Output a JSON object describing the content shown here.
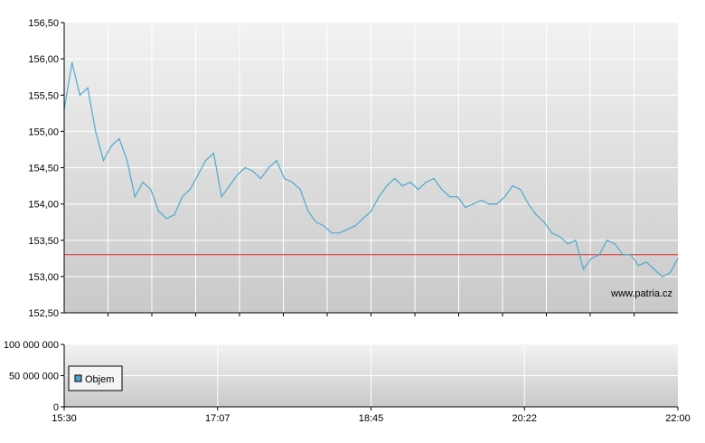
{
  "watermark": "www.patria.cz",
  "colors": {
    "price_line": "#4fa9d0",
    "reference_line": "#e03030",
    "plot_bg_top": "#f2f2f2",
    "plot_bg_bottom": "#c9c9c9",
    "legend_swatch": "#4f9fd0"
  },
  "chart_data": [
    {
      "type": "line",
      "grid": true,
      "x_ticks": [
        "15:30",
        "17:07",
        "18:45",
        "20:22",
        "22:00"
      ],
      "ylim": [
        152.5,
        156.5
      ],
      "y_ticks": [
        152.5,
        153.0,
        153.5,
        154.0,
        154.5,
        155.0,
        155.5,
        156.0,
        156.5
      ],
      "y_tick_labels": [
        "152,50",
        "153,00",
        "153,50",
        "154,00",
        "154,50",
        "155,00",
        "155,50",
        "156,00",
        "156,50"
      ],
      "reference_line": 153.3,
      "series": [
        {
          "x": [
            "15:30",
            "15:35",
            "15:40",
            "15:45",
            "15:50",
            "15:55",
            "16:00",
            "16:05",
            "16:10",
            "16:15",
            "16:20",
            "16:25",
            "16:30",
            "16:35",
            "16:40",
            "16:45",
            "16:50",
            "16:55",
            "17:00",
            "17:05",
            "17:10",
            "17:15",
            "17:20",
            "17:25",
            "17:30",
            "17:35",
            "17:40",
            "17:45",
            "17:50",
            "17:55",
            "18:00",
            "18:05",
            "18:10",
            "18:15",
            "18:20",
            "18:25",
            "18:30",
            "18:35",
            "18:40",
            "18:45",
            "18:50",
            "18:55",
            "19:00",
            "19:05",
            "19:10",
            "19:15",
            "19:20",
            "19:25",
            "19:30",
            "19:35",
            "19:40",
            "19:45",
            "19:50",
            "19:55",
            "20:00",
            "20:05",
            "20:10",
            "20:15",
            "20:20",
            "20:25",
            "20:30",
            "20:35",
            "20:40",
            "20:45",
            "20:50",
            "20:55",
            "21:00",
            "21:05",
            "21:10",
            "21:15",
            "21:20",
            "21:25",
            "21:30",
            "21:35",
            "21:40",
            "21:45",
            "21:50",
            "21:55",
            "22:00"
          ],
          "values": [
            155.3,
            155.95,
            155.5,
            155.6,
            155.0,
            154.6,
            154.8,
            154.9,
            154.6,
            154.1,
            154.3,
            154.2,
            153.9,
            153.8,
            153.85,
            154.1,
            154.2,
            154.4,
            154.6,
            154.7,
            154.1,
            154.25,
            154.4,
            154.5,
            154.45,
            154.35,
            154.5,
            154.6,
            154.35,
            154.3,
            154.2,
            153.9,
            153.75,
            153.7,
            153.6,
            153.6,
            153.65,
            153.7,
            153.8,
            153.9,
            154.1,
            154.25,
            154.35,
            154.25,
            154.3,
            154.2,
            154.3,
            154.35,
            154.2,
            154.1,
            154.1,
            153.95,
            154.0,
            154.05,
            154.0,
            154.0,
            154.1,
            154.25,
            154.2,
            154.0,
            153.85,
            153.75,
            153.6,
            153.55,
            153.45,
            153.5,
            153.1,
            153.25,
            153.3,
            153.5,
            153.45,
            153.3,
            153.3,
            153.15,
            153.2,
            153.1,
            153.0,
            153.05,
            153.25
          ]
        }
      ]
    },
    {
      "type": "bar",
      "grid": true,
      "x_ticks": [
        "15:30",
        "17:07",
        "18:45",
        "20:22",
        "22:00"
      ],
      "ylim": [
        0,
        100000000
      ],
      "y_ticks": [
        0,
        50000000,
        100000000
      ],
      "y_tick_labels": [
        "0",
        "50 000 000",
        "100 000 000"
      ],
      "legend": "Objem",
      "series": [
        {
          "name": "Objem",
          "values": []
        }
      ]
    }
  ]
}
